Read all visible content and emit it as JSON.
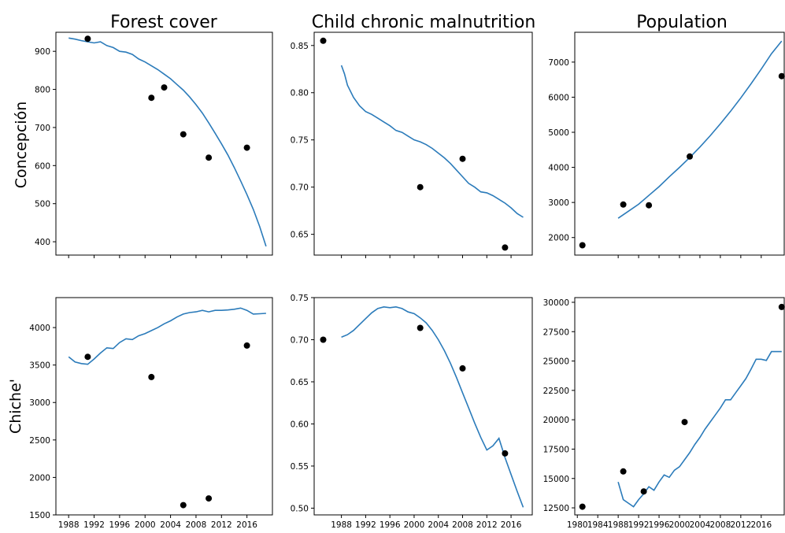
{
  "figure": {
    "columns": [
      "Forest cover",
      "Child chronic malnutrition",
      "Population"
    ],
    "rows": [
      "Concepción",
      "Chiche'"
    ]
  },
  "colors": {
    "line": "#2b7bba",
    "points": "#000000"
  },
  "chart_data": [
    {
      "id": "concepcion-forest",
      "type": "line",
      "title": "Forest cover",
      "row": "Concepción",
      "xlim": [
        1986,
        2020
      ],
      "ylim": [
        365,
        950
      ],
      "xticks": [],
      "yticks": [
        400,
        500,
        600,
        700,
        800,
        900
      ],
      "line": {
        "x": [
          1988,
          1989,
          1990,
          1991,
          1992,
          1993,
          1994,
          1995,
          1996,
          1997,
          1998,
          1999,
          2000,
          2001,
          2002,
          2003,
          2004,
          2005,
          2006,
          2007,
          2008,
          2009,
          2010,
          2011,
          2012,
          2013,
          2014,
          2015,
          2016,
          2017,
          2018,
          2019
        ],
        "y": [
          935,
          932,
          928,
          925,
          922,
          925,
          915,
          910,
          900,
          898,
          892,
          880,
          872,
          862,
          852,
          840,
          828,
          813,
          798,
          780,
          760,
          738,
          712,
          685,
          657,
          628,
          595,
          560,
          524,
          485,
          440,
          388
        ]
      },
      "points": {
        "x": [
          1991,
          2001,
          2003,
          2006,
          2010,
          2016
        ],
        "y": [
          933,
          778,
          805,
          682,
          621,
          647
        ]
      }
    },
    {
      "id": "concepcion-malnutrition",
      "type": "line",
      "title": "Child chronic malnutrition",
      "row": "Concepción",
      "xlim": [
        1983.5,
        2019.5
      ],
      "ylim": [
        0.628,
        0.864
      ],
      "xticks": [],
      "yticks": [
        0.65,
        0.7,
        0.75,
        0.8,
        0.85
      ],
      "line": {
        "x": [
          1988,
          1988.5,
          1989,
          1990,
          1991,
          1992,
          1993,
          1994,
          1995,
          1996,
          1997,
          1998,
          1999,
          2000,
          2001,
          2002,
          2003,
          2004,
          2005,
          2006,
          2007,
          2008,
          2009,
          2010,
          2011,
          2012,
          2013,
          2014,
          2015,
          2016,
          2017,
          2018
        ],
        "y": [
          0.829,
          0.82,
          0.808,
          0.795,
          0.786,
          0.78,
          0.777,
          0.773,
          0.769,
          0.765,
          0.76,
          0.758,
          0.754,
          0.75,
          0.748,
          0.745,
          0.741,
          0.736,
          0.731,
          0.725,
          0.718,
          0.711,
          0.704,
          0.7,
          0.695,
          0.694,
          0.691,
          0.687,
          0.683,
          0.678,
          0.672,
          0.668
        ]
      },
      "points": {
        "x": [
          1985,
          2001,
          2008,
          2015
        ],
        "y": [
          0.855,
          0.7,
          0.73,
          0.636
        ]
      }
    },
    {
      "id": "concepcion-population",
      "type": "line",
      "title": "Population",
      "row": "Concepción",
      "xlim": [
        1979.5,
        2020.5
      ],
      "ylim": [
        1500,
        7850
      ],
      "xticks": [],
      "yticks": [
        2000,
        3000,
        4000,
        5000,
        6000,
        7000
      ],
      "line": {
        "x": [
          1988,
          1990,
          1992,
          1994,
          1996,
          1998,
          2000,
          2002,
          2004,
          2006,
          2008,
          2010,
          2012,
          2014,
          2016,
          2018,
          2020
        ],
        "y": [
          2550,
          2750,
          2950,
          3200,
          3450,
          3730,
          4000,
          4280,
          4580,
          4900,
          5240,
          5600,
          5980,
          6380,
          6800,
          7240,
          7600
        ]
      },
      "points": {
        "x": [
          1981,
          1989,
          1994,
          2002,
          2020
        ],
        "y": [
          1780,
          2940,
          2920,
          4310,
          6600
        ]
      }
    },
    {
      "id": "chiche-forest",
      "type": "line",
      "title": "Forest cover",
      "row": "Chiche'",
      "xlim": [
        1986,
        2020
      ],
      "ylim": [
        1500,
        4400
      ],
      "xticks": [
        1988,
        1992,
        1996,
        2000,
        2004,
        2008,
        2012,
        2016
      ],
      "xtick_labels": [
        "1988",
        "1992",
        "1996",
        "2000",
        "2004",
        "2008",
        "2012",
        "2016"
      ],
      "yticks": [
        1500,
        2000,
        2500,
        3000,
        3500,
        4000
      ],
      "line": {
        "x": [
          1988,
          1989,
          1990,
          1991,
          1992,
          1993,
          1994,
          1995,
          1996,
          1997,
          1998,
          1999,
          2000,
          2001,
          2002,
          2003,
          2004,
          2005,
          2006,
          2007,
          2008,
          2009,
          2010,
          2011,
          2012,
          2013,
          2014,
          2015,
          2016,
          2017,
          2018,
          2019
        ],
        "y": [
          3610,
          3540,
          3520,
          3510,
          3580,
          3660,
          3730,
          3720,
          3800,
          3850,
          3840,
          3890,
          3920,
          3960,
          4000,
          4050,
          4090,
          4140,
          4180,
          4200,
          4210,
          4230,
          4210,
          4230,
          4230,
          4235,
          4245,
          4260,
          4230,
          4180,
          4185,
          4190
        ]
      },
      "points": {
        "x": [
          1991,
          2001,
          2006,
          2010,
          2016
        ],
        "y": [
          3610,
          3340,
          1630,
          1720,
          3760
        ]
      }
    },
    {
      "id": "chiche-malnutrition",
      "type": "line",
      "title": "Child chronic malnutrition",
      "row": "Chiche'",
      "xlim": [
        1983.5,
        2019.5
      ],
      "ylim": [
        0.492,
        0.75
      ],
      "xticks": [
        1988,
        1992,
        1996,
        2000,
        2004,
        2008,
        2012,
        2016
      ],
      "xtick_labels": [
        "1988",
        "1992",
        "1996",
        "2000",
        "2004",
        "2008",
        "2012",
        "2016"
      ],
      "yticks": [
        0.5,
        0.55,
        0.6,
        0.65,
        0.7,
        0.75
      ],
      "line": {
        "x": [
          1988,
          1989,
          1990,
          1991,
          1992,
          1993,
          1994,
          1995,
          1996,
          1997,
          1998,
          1999,
          2000,
          2001,
          2002,
          2003,
          2004,
          2005,
          2006,
          2007,
          2008,
          2009,
          2010,
          2011,
          2012,
          2013,
          2014,
          2015,
          2016,
          2017,
          2018
        ],
        "y": [
          0.703,
          0.706,
          0.711,
          0.718,
          0.725,
          0.732,
          0.737,
          0.739,
          0.738,
          0.739,
          0.737,
          0.733,
          0.731,
          0.726,
          0.72,
          0.711,
          0.7,
          0.687,
          0.672,
          0.655,
          0.637,
          0.619,
          0.601,
          0.584,
          0.569,
          0.574,
          0.583,
          0.56,
          0.54,
          0.52,
          0.501
        ]
      },
      "points": {
        "x": [
          1985,
          2001,
          2008,
          2015
        ],
        "y": [
          0.7,
          0.714,
          0.666,
          0.565
        ]
      }
    },
    {
      "id": "chiche-population",
      "type": "line",
      "title": "Population",
      "row": "Chiche'",
      "xlim": [
        1979.5,
        2020.5
      ],
      "ylim": [
        11900,
        30400
      ],
      "xticks": [
        1980,
        1984,
        1988,
        1992,
        1996,
        2000,
        2004,
        2008,
        2012,
        2016
      ],
      "xtick_labels": [
        "1980",
        "1984",
        "1988",
        "1992",
        "1996",
        "2000",
        "2004",
        "2008",
        "2012",
        "2016"
      ],
      "yticks": [
        12500,
        15000,
        17500,
        20000,
        22500,
        25000,
        27500,
        30000
      ],
      "line": {
        "x": [
          1988,
          1989,
          1990,
          1991,
          1992,
          1993,
          1994,
          1995,
          1996,
          1997,
          1998,
          1999,
          2000,
          2001,
          2002,
          2003,
          2004,
          2005,
          2006,
          2007,
          2008,
          2009,
          2010,
          2011,
          2012,
          2013,
          2014,
          2015,
          2016,
          2017,
          2018,
          2019,
          2020
        ],
        "y": [
          14700,
          13200,
          12900,
          12600,
          13200,
          13700,
          14300,
          14000,
          14700,
          15300,
          15100,
          15700,
          16000,
          16600,
          17200,
          17900,
          18500,
          19200,
          19800,
          20400,
          21000,
          21700,
          21700,
          22300,
          22900,
          23500,
          24300,
          25150,
          25150,
          25050,
          25800,
          25800,
          25800
        ]
      },
      "points": {
        "x": [
          1981,
          1989,
          1993,
          2001,
          2020
        ],
        "y": [
          12600,
          15600,
          13900,
          19800,
          29600
        ]
      }
    }
  ]
}
